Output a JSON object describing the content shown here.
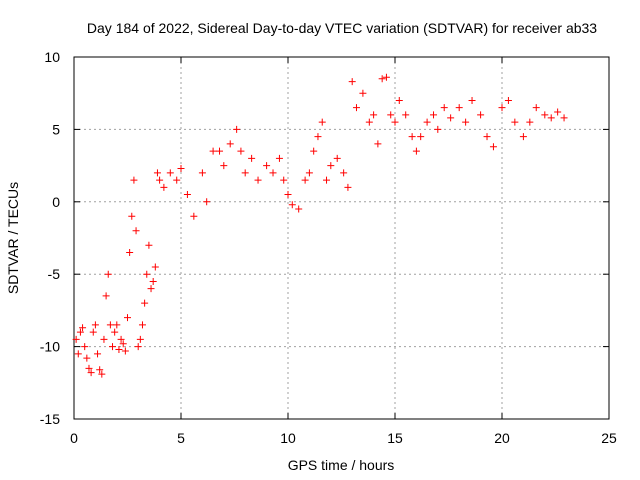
{
  "chart_data": {
    "type": "scatter",
    "title": "Day 184 of 2022, Sidereal Day-to-day VTEC variation (SDTVAR) for receiver ab33",
    "xlabel": "GPS time / hours",
    "ylabel": "SDTVAR / TECUs",
    "xlim": [
      0,
      25
    ],
    "ylim": [
      -15,
      10
    ],
    "xticks": [
      0,
      5,
      10,
      15,
      20,
      25
    ],
    "yticks": [
      -15,
      -10,
      -5,
      0,
      5,
      10
    ],
    "xtick_labels": [
      "0",
      "5",
      "10",
      "15",
      "20",
      "25"
    ],
    "ytick_labels": [
      "-15",
      "-10",
      "-5",
      "0",
      "5",
      "10"
    ],
    "grid": true,
    "marker": "+",
    "color": "#ff0000",
    "series": [
      {
        "name": "SDTVAR",
        "x": [
          0.1,
          0.2,
          0.3,
          0.4,
          0.5,
          0.6,
          0.7,
          0.8,
          0.9,
          1.0,
          1.1,
          1.2,
          1.3,
          1.4,
          1.5,
          1.6,
          1.7,
          1.8,
          1.9,
          2.0,
          2.1,
          2.2,
          2.3,
          2.4,
          2.5,
          2.6,
          2.7,
          2.8,
          2.9,
          3.0,
          3.1,
          3.2,
          3.3,
          3.4,
          3.5,
          3.6,
          3.7,
          3.8,
          3.9,
          4.0,
          4.2,
          4.5,
          4.8,
          5.0,
          5.3,
          5.6,
          6.0,
          6.2,
          6.5,
          6.8,
          7.0,
          7.3,
          7.6,
          7.8,
          8.0,
          8.3,
          8.6,
          9.0,
          9.3,
          9.6,
          9.8,
          10.0,
          10.2,
          10.5,
          10.8,
          11.0,
          11.2,
          11.4,
          11.6,
          11.8,
          12.0,
          12.3,
          12.6,
          12.8,
          13.0,
          13.2,
          13.5,
          13.8,
          14.0,
          14.2,
          14.4,
          14.6,
          14.8,
          15.0,
          15.2,
          15.5,
          15.8,
          16.0,
          16.2,
          16.5,
          16.8,
          17.0,
          17.3,
          17.6,
          18.0,
          18.3,
          18.6,
          19.0,
          19.3,
          19.6,
          20.0,
          20.3,
          20.6,
          21.0,
          21.3,
          21.6,
          22.0,
          22.3,
          22.6,
          22.9
        ],
        "y": [
          -9.5,
          -10.5,
          -9.0,
          -8.7,
          -10.0,
          -10.8,
          -11.5,
          -11.8,
          -9.0,
          -8.5,
          -10.5,
          -11.6,
          -11.9,
          -9.5,
          -6.5,
          -5.0,
          -8.5,
          -10.0,
          -9.0,
          -8.5,
          -10.2,
          -9.5,
          -9.8,
          -10.3,
          -8.0,
          -3.5,
          -1.0,
          1.5,
          -2.0,
          -10.0,
          -9.5,
          -8.5,
          -7.0,
          -5.0,
          -3.0,
          -6.0,
          -5.5,
          -4.5,
          2.0,
          1.5,
          1.0,
          2.0,
          1.5,
          2.3,
          0.5,
          -1.0,
          2.0,
          0.0,
          3.5,
          3.5,
          2.5,
          4.0,
          5.0,
          3.5,
          2.0,
          3.0,
          1.5,
          2.5,
          2.0,
          3.0,
          1.5,
          0.5,
          -0.2,
          -0.5,
          1.5,
          2.0,
          3.5,
          4.5,
          5.5,
          1.5,
          2.5,
          3.0,
          2.0,
          1.0,
          8.3,
          6.5,
          7.5,
          5.5,
          6.0,
          4.0,
          8.5,
          8.6,
          6.0,
          5.5,
          7.0,
          6.0,
          4.5,
          3.5,
          4.5,
          5.5,
          6.0,
          5.0,
          6.5,
          5.8,
          6.5,
          5.5,
          7.0,
          6.0,
          4.5,
          3.8,
          6.5,
          7.0,
          5.5,
          4.5,
          5.5,
          6.5,
          6.0,
          5.8,
          6.2,
          5.8
        ]
      }
    ]
  }
}
